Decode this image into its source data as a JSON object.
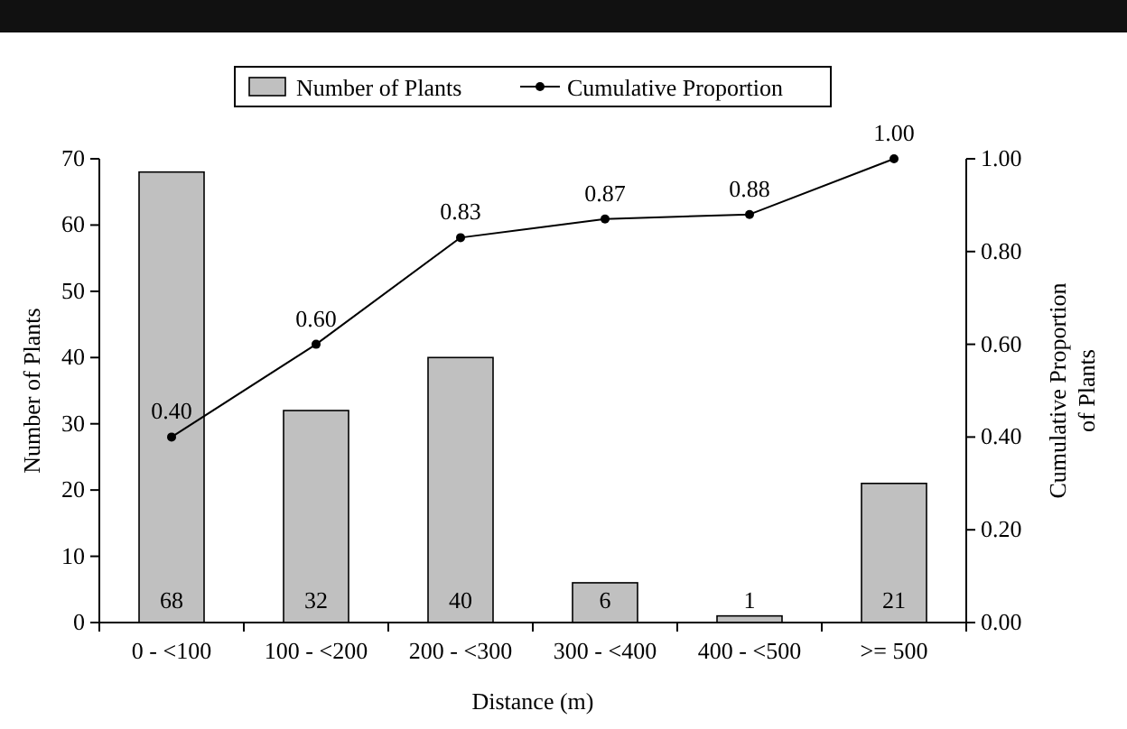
{
  "chart_data": {
    "type": "bar",
    "categories": [
      "0 - <100",
      "100 - <200",
      "200 - <300",
      "300 - <400",
      "400 - <500",
      ">= 500"
    ],
    "series": [
      {
        "name": "Number of Plants",
        "color": "#c0c0c0",
        "values": [
          68,
          32,
          40,
          6,
          1,
          21
        ],
        "value_labels": [
          "68",
          "32",
          "40",
          "6",
          "1",
          "21"
        ]
      },
      {
        "name": "Cumulative Proportion",
        "type": "line",
        "axis": "y2",
        "color": "#000000",
        "marker": "circle",
        "values": [
          0.4,
          0.6,
          0.83,
          0.87,
          0.88,
          1.0
        ],
        "value_labels": [
          "0.40",
          "0.60",
          "0.83",
          "0.87",
          "0.88",
          "1.00"
        ]
      }
    ],
    "xlabel": "Distance (m)",
    "ylabel": "Number of Plants",
    "y2label": "Cumulative Proportion of Plants",
    "ylim": [
      0,
      70
    ],
    "yticks": [
      0,
      10,
      20,
      30,
      40,
      50,
      60,
      70
    ],
    "y2lim": [
      0,
      1
    ],
    "y2ticks": [
      {
        "value": 0,
        "label": "0.00"
      },
      {
        "value": 0.2,
        "label": "0.20"
      },
      {
        "value": 0.4,
        "label": "0.40"
      },
      {
        "value": 0.6,
        "label": "0.60"
      },
      {
        "value": 0.8,
        "label": "0.80"
      },
      {
        "value": 1,
        "label": "1.00"
      }
    ],
    "legend": "top",
    "grid": false
  }
}
